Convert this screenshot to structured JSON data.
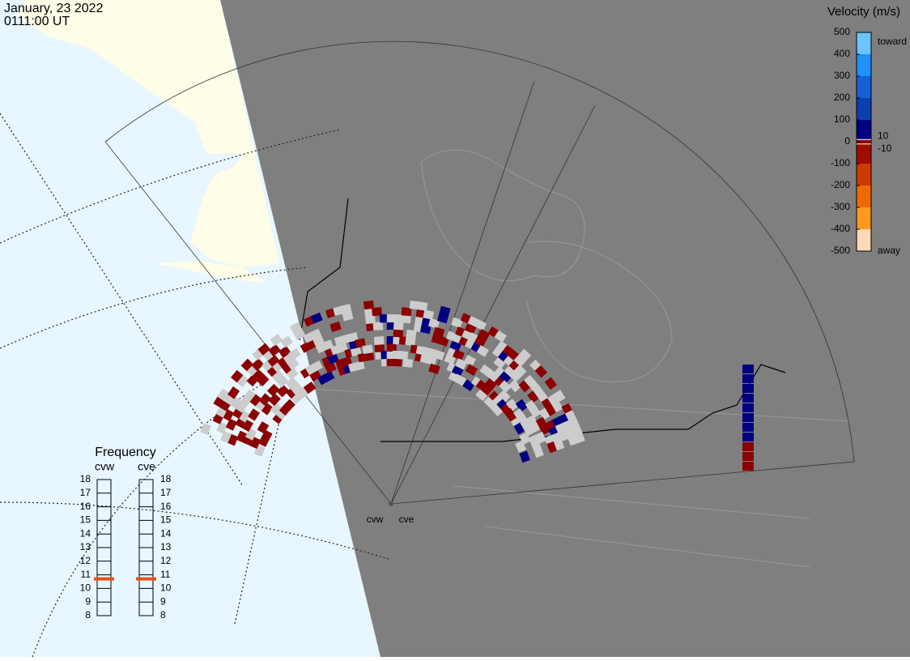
{
  "map": {
    "date": "January, 23 2022",
    "time": "0111:00 UT",
    "radars": [
      "cvw",
      "cve"
    ]
  },
  "colorbar": {
    "title": "Velocity (m/s)",
    "lim": [
      -500,
      500
    ],
    "ticks": [
      500,
      400,
      300,
      200,
      100,
      0,
      -100,
      -200,
      -300,
      -400,
      -500
    ],
    "inner_ticks": [
      10,
      -10
    ],
    "top_label": "toward",
    "bottom_label": "away",
    "colors": [
      {
        "value": -500,
        "color": "#fdd9b5"
      },
      {
        "value": -400,
        "color": "#ff9a1f"
      },
      {
        "value": -300,
        "color": "#f06a00"
      },
      {
        "value": -200,
        "color": "#d03a00"
      },
      {
        "value": -100,
        "color": "#a00c00"
      },
      {
        "value": -10,
        "color": "#8b0000"
      },
      {
        "value": 10,
        "color": "#000080"
      },
      {
        "value": 100,
        "color": "#0a3fb0"
      },
      {
        "value": 200,
        "color": "#1660d8"
      },
      {
        "value": 300,
        "color": "#1e90ff"
      },
      {
        "value": 400,
        "color": "#6cc4ff"
      },
      {
        "value": 500,
        "color": "#cdeeff"
      }
    ]
  },
  "frequency": {
    "title": "Frequency",
    "lim": [
      8,
      18
    ],
    "ticks": [
      8,
      9,
      10,
      11,
      12,
      13,
      14,
      15,
      16,
      17,
      18
    ],
    "radars": [
      {
        "name": "cvw",
        "value": 10.7
      },
      {
        "name": "cve",
        "value": 10.7
      }
    ]
  }
}
